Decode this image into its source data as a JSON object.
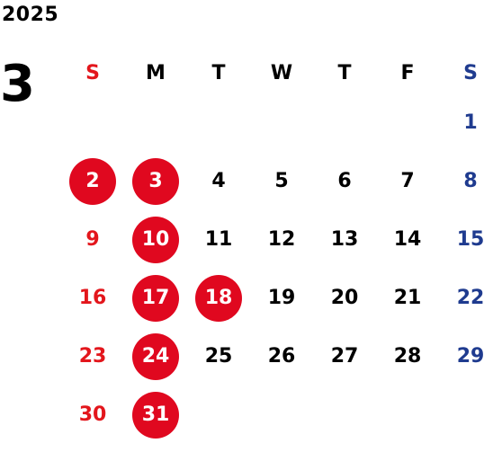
{
  "year": "2025",
  "month": "3",
  "colors": {
    "sunday": "#e3161c",
    "saturday": "#1f3b8f",
    "weekday": "#000000",
    "holiday_circle": "#e0081f",
    "holiday_text": "#ffffff"
  },
  "weekdays": [
    {
      "label": "S",
      "kind": "sunday"
    },
    {
      "label": "M",
      "kind": "weekday"
    },
    {
      "label": "T",
      "kind": "weekday"
    },
    {
      "label": "W",
      "kind": "weekday"
    },
    {
      "label": "T",
      "kind": "weekday"
    },
    {
      "label": "F",
      "kind": "weekday"
    },
    {
      "label": "S",
      "kind": "saturday"
    }
  ],
  "weeks": [
    [
      "",
      "",
      "",
      "",
      "",
      "",
      "1"
    ],
    [
      "2",
      "3",
      "4",
      "5",
      "6",
      "7",
      "8"
    ],
    [
      "9",
      "10",
      "11",
      "12",
      "13",
      "14",
      "15"
    ],
    [
      "16",
      "17",
      "18",
      "19",
      "20",
      "21",
      "22"
    ],
    [
      "23",
      "24",
      "25",
      "26",
      "27",
      "28",
      "29"
    ],
    [
      "30",
      "31",
      "",
      "",
      "",
      "",
      ""
    ]
  ],
  "highlighted_days": [
    "2",
    "3",
    "10",
    "17",
    "18",
    "24",
    "31"
  ]
}
